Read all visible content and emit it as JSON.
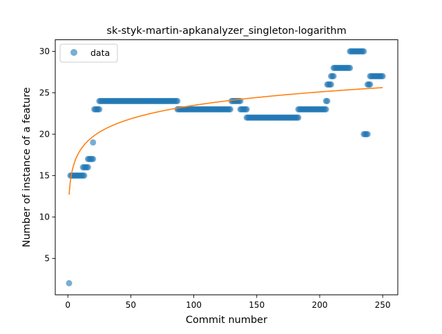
{
  "chart_data": {
    "type": "scatter",
    "title": "sk-styk-martin-apkanalyzer_singleton-logarithm",
    "xlabel": "Commit number",
    "ylabel": "Number of instance of a feature",
    "xlim": [
      -10,
      262
    ],
    "ylim": [
      0.6,
      31.4
    ],
    "xticks": [
      0,
      50,
      100,
      150,
      200,
      250
    ],
    "yticks": [
      5,
      10,
      15,
      20,
      25,
      30
    ],
    "grid": false,
    "legend_position": "top-left",
    "colors": {
      "points": "#1f77b4",
      "fit": "#ff7f0e"
    },
    "series": [
      {
        "name": "data",
        "kind": "points",
        "segments": [
          {
            "from": 1,
            "to": 1,
            "y": 2
          },
          {
            "from": 2,
            "to": 2,
            "y": 15
          },
          {
            "from": 3,
            "to": 13,
            "y": 15
          },
          {
            "from": 12,
            "to": 16,
            "y": 16
          },
          {
            "from": 16,
            "to": 20,
            "y": 17
          },
          {
            "from": 20,
            "to": 20,
            "y": 19
          },
          {
            "from": 21,
            "to": 25,
            "y": 23
          },
          {
            "from": 25,
            "to": 87,
            "y": 24
          },
          {
            "from": 87,
            "to": 129,
            "y": 23
          },
          {
            "from": 130,
            "to": 137,
            "y": 24
          },
          {
            "from": 137,
            "to": 142,
            "y": 23
          },
          {
            "from": 142,
            "to": 183,
            "y": 22
          },
          {
            "from": 183,
            "to": 205,
            "y": 23
          },
          {
            "from": 205,
            "to": 206,
            "y": 24
          },
          {
            "from": 206,
            "to": 209,
            "y": 26
          },
          {
            "from": 209,
            "to": 211,
            "y": 27
          },
          {
            "from": 211,
            "to": 224,
            "y": 28
          },
          {
            "from": 224,
            "to": 235,
            "y": 30
          },
          {
            "from": 235,
            "to": 238,
            "y": 20
          },
          {
            "from": 238,
            "to": 240,
            "y": 26
          },
          {
            "from": 240,
            "to": 250,
            "y": 27
          }
        ]
      },
      {
        "name": "",
        "kind": "line",
        "fit": {
          "model": "logarithmic",
          "a": 12.7,
          "b": 2.34,
          "x_from": 1,
          "x_to": 250
        }
      }
    ]
  }
}
